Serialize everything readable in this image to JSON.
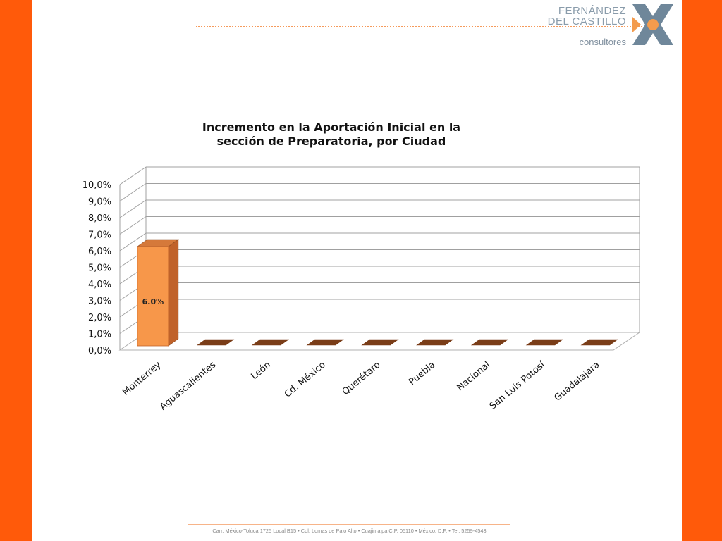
{
  "logo": {
    "line1": "FERNÁNDEZ",
    "line2": "DEL CASTILLO",
    "sub": "consultores",
    "colors": {
      "slate": "#6f879a",
      "orange": "#f39b4d"
    }
  },
  "footer": {
    "text": "Carr. México-Toluca 1725 Local B15 • Col. Lomas de Palo Alto • Cuajimalpa C.P. 05110 • México, D.F. • Tel. 5259-4543"
  },
  "colors": {
    "background": "#ff5a0a",
    "bar_front": "#f7974a",
    "bar_side": "#c0622a",
    "bar_top": "#d5793a",
    "empty_bar": "#7a3d18"
  },
  "chart_data": {
    "type": "bar",
    "title": "Incremento en la Aportación Inicial en la sección de Preparatoria, por Ciudad",
    "categories": [
      "Monterrey",
      "Aguascalientes",
      "León",
      "Cd. México",
      "Querétaro",
      "Puebla",
      "Nacional",
      "San Luis Potosí",
      "Guadalajara"
    ],
    "values": [
      6.0,
      0,
      0,
      0,
      0,
      0,
      0,
      0,
      0
    ],
    "data_labels": [
      "6.0%",
      "",
      "",
      "",
      "",
      "",
      "",
      "",
      ""
    ],
    "yticks": [
      "0,0%",
      "1,0%",
      "2,0%",
      "3,0%",
      "4,0%",
      "5,0%",
      "6,0%",
      "7,0%",
      "8,0%",
      "9,0%",
      "10,0%"
    ],
    "ylim": [
      0,
      10
    ],
    "grid": true,
    "style": "3d"
  }
}
